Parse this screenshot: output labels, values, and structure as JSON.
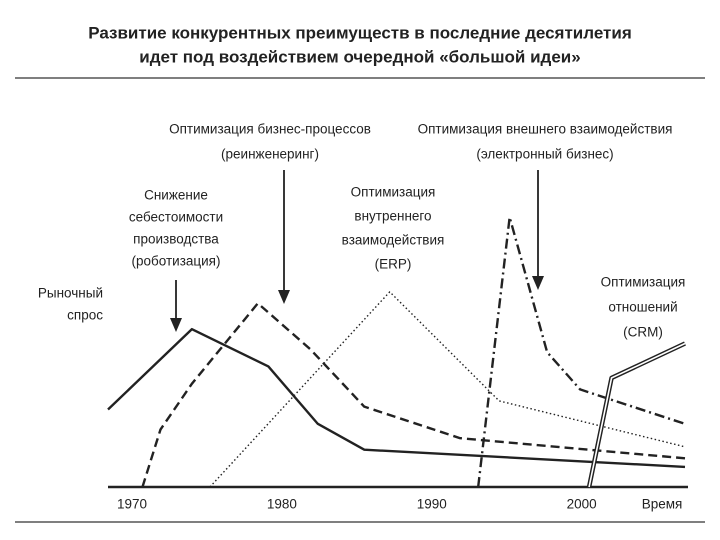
{
  "chart_data": {
    "type": "line",
    "title": [
      "Развитие конкурентных преимуществ в последние десятилетия",
      "идет под воздействием очередной «большой идеи»"
    ],
    "x_label": "Время",
    "y_label": [
      "Рыночный",
      "спрос"
    ],
    "xlim": [
      1968.4,
      2006.9
    ],
    "xticks": [
      1970,
      1980,
      1990,
      2000
    ],
    "ylim": [
      0,
      100
    ],
    "grid": false,
    "annotations": [
      {
        "lines": [
          "Снижение",
          "себестоимости",
          "производства",
          "(роботизация)"
        ]
      },
      {
        "lines": [
          "Оптимизация бизнес-процессов",
          "(реинженеринг)"
        ]
      },
      {
        "lines": [
          "Оптимизация",
          "внутреннего",
          "взаимодействия",
          "(ERP)"
        ]
      },
      {
        "lines": [
          "Оптимизация внешнего взаимодействия",
          "(электронный бизнес)"
        ]
      },
      {
        "lines": [
          "Оптимизация",
          "отношений",
          "(CRM)"
        ]
      }
    ],
    "series": [
      {
        "color": "#222222",
        "dash": "solid",
        "x": [
          1968.4,
          1974,
          1979.1,
          1982.4,
          1985.5,
          2006.9
        ],
        "values": [
          27,
          55,
          42,
          22,
          13,
          7
        ]
      },
      {
        "color": "#222222",
        "dash": "dashed",
        "x": [
          1970.7,
          1971.9,
          1974,
          1978.4,
          1981.9,
          1985.5,
          1991.9,
          2006.9
        ],
        "values": [
          0,
          20,
          36,
          64,
          48,
          28,
          17,
          10
        ]
      },
      {
        "color": "#222222",
        "dash": "dotted",
        "x": [
          1975.2,
          1987.2,
          1994.5,
          2006.9
        ],
        "values": [
          0,
          68,
          30,
          14
        ]
      },
      {
        "color": "#222222",
        "dash": "dashdot",
        "x": [
          1993.1,
          1995.2,
          1997.7,
          1999.9,
          2006.9
        ],
        "values": [
          0,
          94,
          47,
          34,
          22
        ]
      },
      {
        "color": "#222222",
        "dash": "double",
        "x": [
          2000.5,
          2002,
          2006.9
        ],
        "values": [
          0,
          38,
          50
        ]
      }
    ]
  }
}
